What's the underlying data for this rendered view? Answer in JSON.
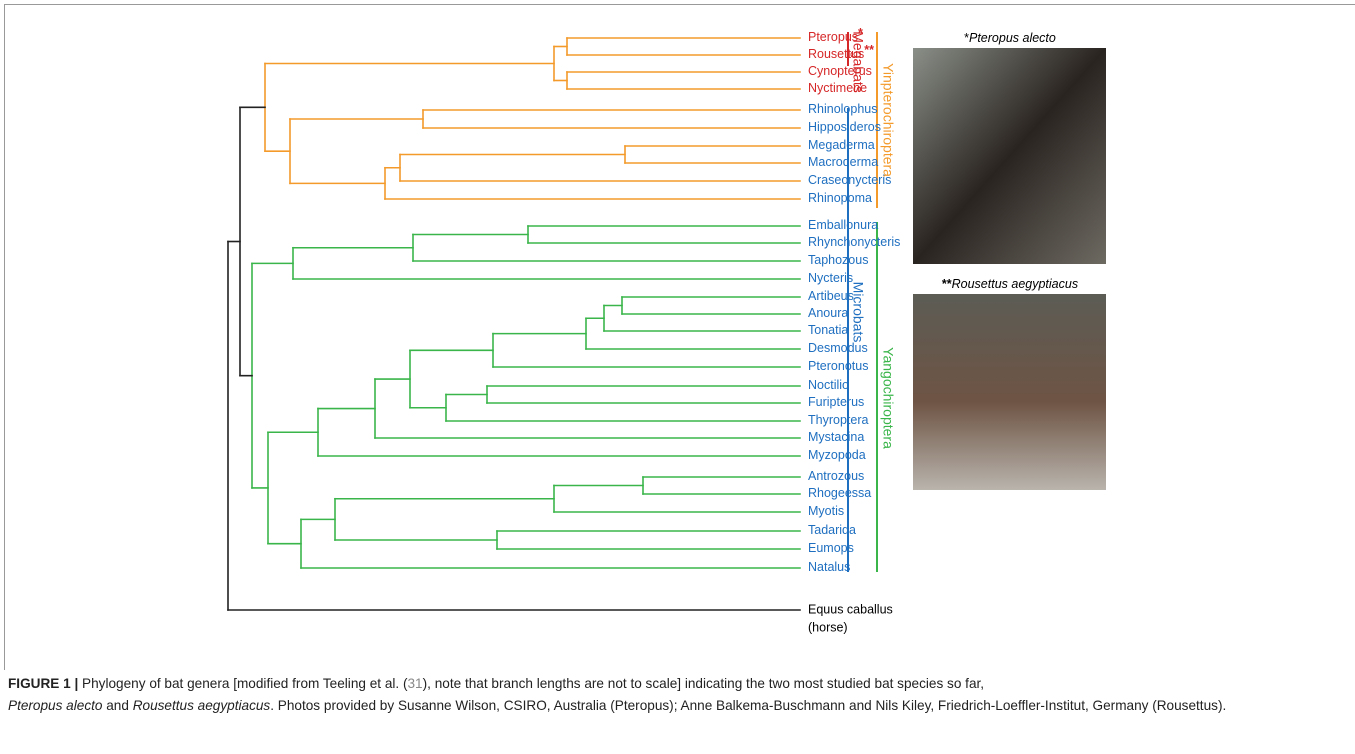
{
  "figure": {
    "leaves": [
      {
        "label": "Pteropus",
        "mark": "*",
        "color": "#d62728"
      },
      {
        "label": "Rousettus",
        "mark": "**",
        "color": "#d62728"
      },
      {
        "label": "Cynopterus",
        "color": "#d62728"
      },
      {
        "label": "Nyctimene",
        "color": "#d62728"
      },
      {
        "label": "Rhinolophus",
        "color": "#1f6fc0"
      },
      {
        "label": "Hipposideros",
        "color": "#1f6fc0"
      },
      {
        "label": "Megaderma",
        "color": "#1f6fc0"
      },
      {
        "label": "Macroderma",
        "color": "#1f6fc0"
      },
      {
        "label": "Craseonycteris",
        "color": "#1f6fc0"
      },
      {
        "label": "Rhinopoma",
        "color": "#1f6fc0"
      },
      {
        "label": "Emballonura",
        "color": "#1f6fc0"
      },
      {
        "label": "Rhynchonycteris",
        "color": "#1f6fc0"
      },
      {
        "label": "Taphozous",
        "color": "#1f6fc0"
      },
      {
        "label": "Nycteris",
        "color": "#1f6fc0"
      },
      {
        "label": "Artibeus",
        "color": "#1f6fc0"
      },
      {
        "label": "Anoura",
        "color": "#1f6fc0"
      },
      {
        "label": "Tonatia",
        "color": "#1f6fc0"
      },
      {
        "label": "Desmodus",
        "color": "#1f6fc0"
      },
      {
        "label": "Pteronotus",
        "color": "#1f6fc0"
      },
      {
        "label": "Noctilio",
        "color": "#1f6fc0"
      },
      {
        "label": "Furipterus",
        "color": "#1f6fc0"
      },
      {
        "label": "Thyroptera",
        "color": "#1f6fc0"
      },
      {
        "label": "Mystacina",
        "color": "#1f6fc0"
      },
      {
        "label": "Myzopoda",
        "color": "#1f6fc0"
      },
      {
        "label": "Antrozous",
        "color": "#1f6fc0"
      },
      {
        "label": "Rhogeessa",
        "color": "#1f6fc0"
      },
      {
        "label": "Myotis",
        "color": "#1f6fc0"
      },
      {
        "label": "Tadarida",
        "color": "#1f6fc0"
      },
      {
        "label": "Eumops",
        "color": "#1f6fc0"
      },
      {
        "label": "Natalus",
        "color": "#1f6fc0"
      }
    ],
    "outgroup": {
      "label": "Equus caballus",
      "note": "(horse)"
    },
    "clades": {
      "megabats": "Megabats",
      "microbats": "Microbats",
      "yinpterochiroptera": "Yinpterochiroptera",
      "yangochiroptera": "Yangochiroptera"
    },
    "photos": [
      {
        "mark": "*",
        "caption": "Pteropus alecto"
      },
      {
        "mark": "**",
        "caption": "Rousettus aegyptiacus"
      }
    ]
  },
  "caption": {
    "label": "FIGURE 1 |",
    "parts": [
      " Phylogeny of bat genera [modified from Teeling et al. (",
      "31",
      "), note that branch lengths are not to scale] indicating the two most studied bat species so far,",
      "Pteropus alecto",
      " and ",
      "Rousettus aegyptiacus",
      ". Photos provided by Susanne Wilson, CSIRO, Australia (Pteropus); Anne Balkema-Buschmann and Nils Kiley, Friedrich-Loeffler-Institut, Germany (Rousettus)."
    ]
  }
}
